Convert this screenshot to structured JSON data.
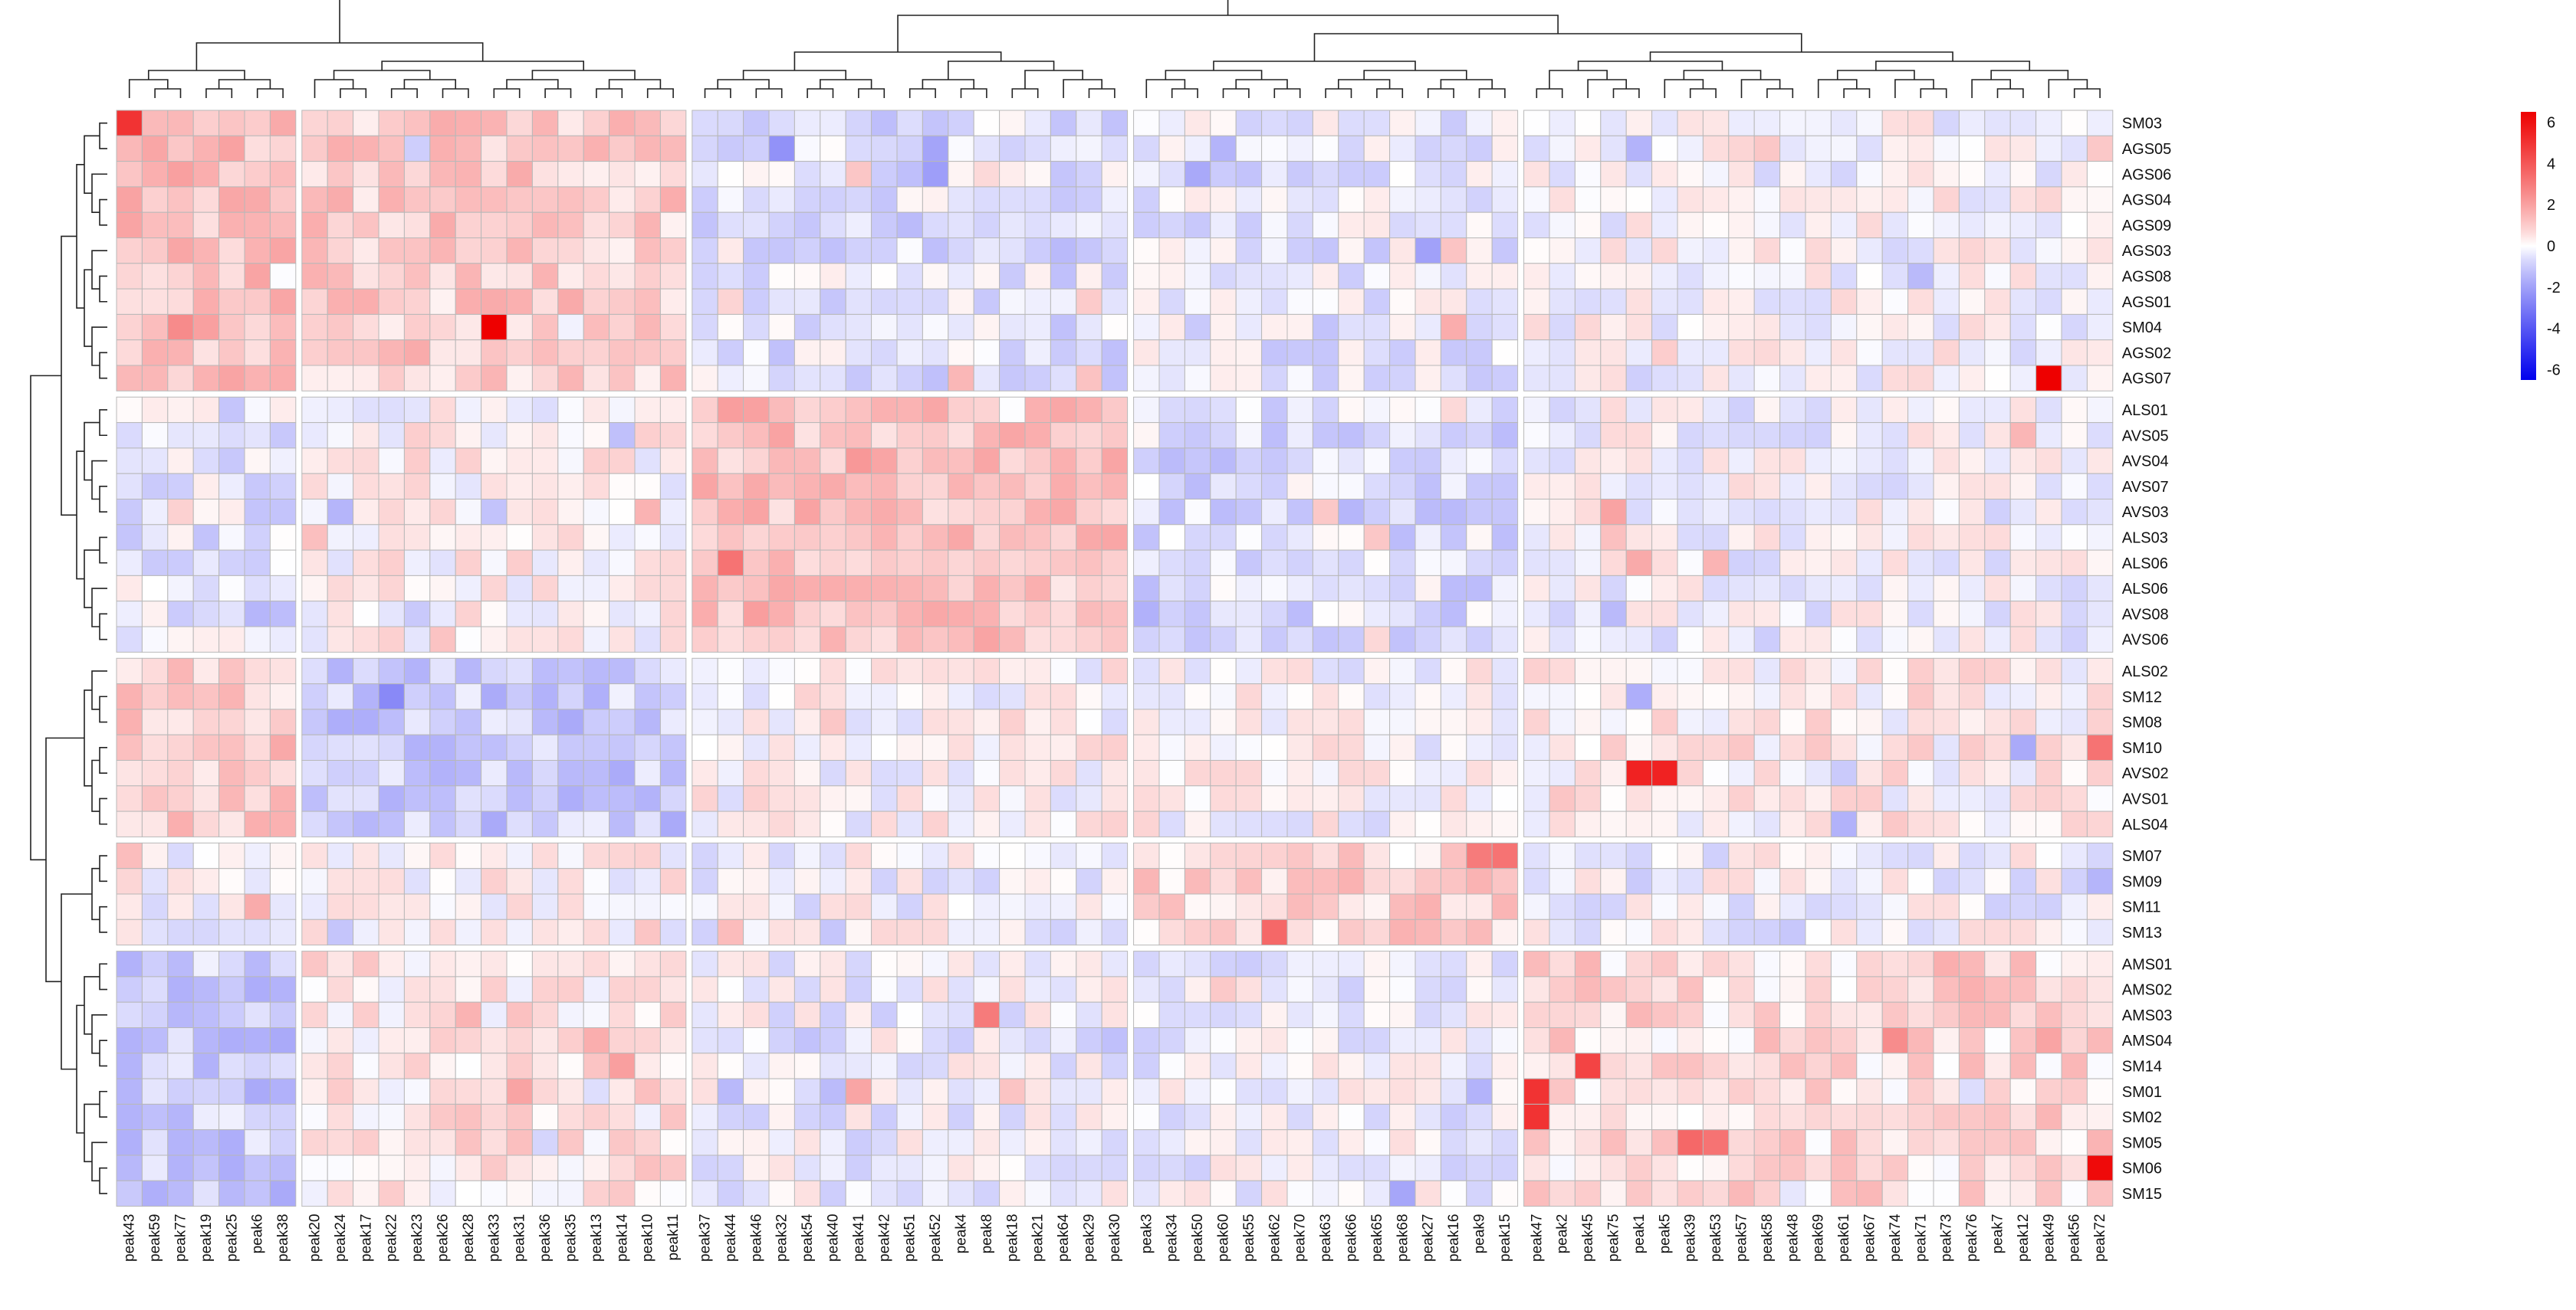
{
  "chart_data": {
    "type": "heatmap",
    "rows": [
      "SM03",
      "AGS05",
      "AGS06",
      "AGS04",
      "AGS09",
      "AGS03",
      "AGS08",
      "AGS01",
      "SM04",
      "AGS02",
      "AGS07",
      "ALS01",
      "AVS05",
      "AVS04",
      "AVS07",
      "AVS03",
      "ALS03",
      "ALS06",
      "ALS06",
      "AVS08",
      "AVS06",
      "ALS02",
      "SM12",
      "SM08",
      "SM10",
      "AVS02",
      "AVS01",
      "ALS04",
      "SM07",
      "SM09",
      "SM11",
      "SM13",
      "AMS01",
      "AMS02",
      "AMS03",
      "AMS04",
      "SM14",
      "SM01",
      "SM02",
      "SM05",
      "SM06",
      "SM15"
    ],
    "row_groups": [
      11,
      10,
      7,
      4,
      10
    ],
    "columns": [
      "peak43",
      "peak59",
      "peak77",
      "peak19",
      "peak25",
      "peak6",
      "peak38",
      "peak20",
      "peak24",
      "peak17",
      "peak22",
      "peak23",
      "peak26",
      "peak28",
      "peak33",
      "peak31",
      "peak36",
      "peak35",
      "peak13",
      "peak14",
      "peak10",
      "peak11",
      "peak37",
      "peak44",
      "peak46",
      "peak32",
      "peak54",
      "peak40",
      "peak41",
      "peak42",
      "peak51",
      "peak52",
      "peak4",
      "peak8",
      "peak18",
      "peak21",
      "peak64",
      "peak29",
      "peak30",
      "peak3",
      "peak34",
      "peak50",
      "peak60",
      "peak55",
      "peak62",
      "peak70",
      "peak63",
      "peak66",
      "peak65",
      "peak68",
      "peak27",
      "peak16",
      "peak9",
      "peak15",
      "peak47",
      "peak2",
      "peak45",
      "peak75",
      "peak1",
      "peak5",
      "peak39",
      "peak53",
      "peak57",
      "peak58",
      "peak48",
      "peak69",
      "peak61",
      "peak67",
      "peak74",
      "peak71",
      "peak73",
      "peak76",
      "peak7",
      "peak12",
      "peak49",
      "peak56",
      "peak72"
    ],
    "column_groups": [
      7,
      15,
      17,
      15,
      23
    ],
    "colorbar": {
      "ticks": [
        6,
        4,
        2,
        0,
        -2,
        -4,
        -6
      ],
      "range": [
        -6.5,
        6.5
      ],
      "low_color": "#0000ee",
      "mid_color": "#ffffff",
      "high_color": "#ee0000"
    },
    "highlights": [
      {
        "row": "SM03",
        "column": "peak43",
        "value": 5.0
      },
      {
        "row": "SM04",
        "column": "peak33",
        "value": 6.5
      },
      {
        "row": "AGS07",
        "column": "peak49",
        "value": 6.5
      },
      {
        "row": "AVS02",
        "column": "peak1",
        "value": 5.5
      },
      {
        "row": "AVS02",
        "column": "peak5",
        "value": 5.5
      },
      {
        "row": "SM06",
        "column": "peak72",
        "value": 6.2
      },
      {
        "row": "SM01",
        "column": "peak47",
        "value": 5.0
      },
      {
        "row": "SM02",
        "column": "peak47",
        "value": 5.0
      },
      {
        "row": "SM14",
        "column": "peak45",
        "value": 4.5
      },
      {
        "row": "SM13",
        "column": "peak62",
        "value": 3.5
      },
      {
        "row": "SM10",
        "column": "peak72",
        "value": 3.2
      },
      {
        "row": "SM07",
        "column": "peak9",
        "value": 3.0
      },
      {
        "row": "SM07",
        "column": "peak15",
        "value": 3.2
      },
      {
        "row": "SM05",
        "column": "peak39",
        "value": 3.5
      },
      {
        "row": "SM05",
        "column": "peak53",
        "value": 3.2
      },
      {
        "row": "AMS03",
        "column": "peak8",
        "value": 3.0
      },
      {
        "row": "ALS06",
        "column": "peak44",
        "value": 3.2
      }
    ]
  }
}
